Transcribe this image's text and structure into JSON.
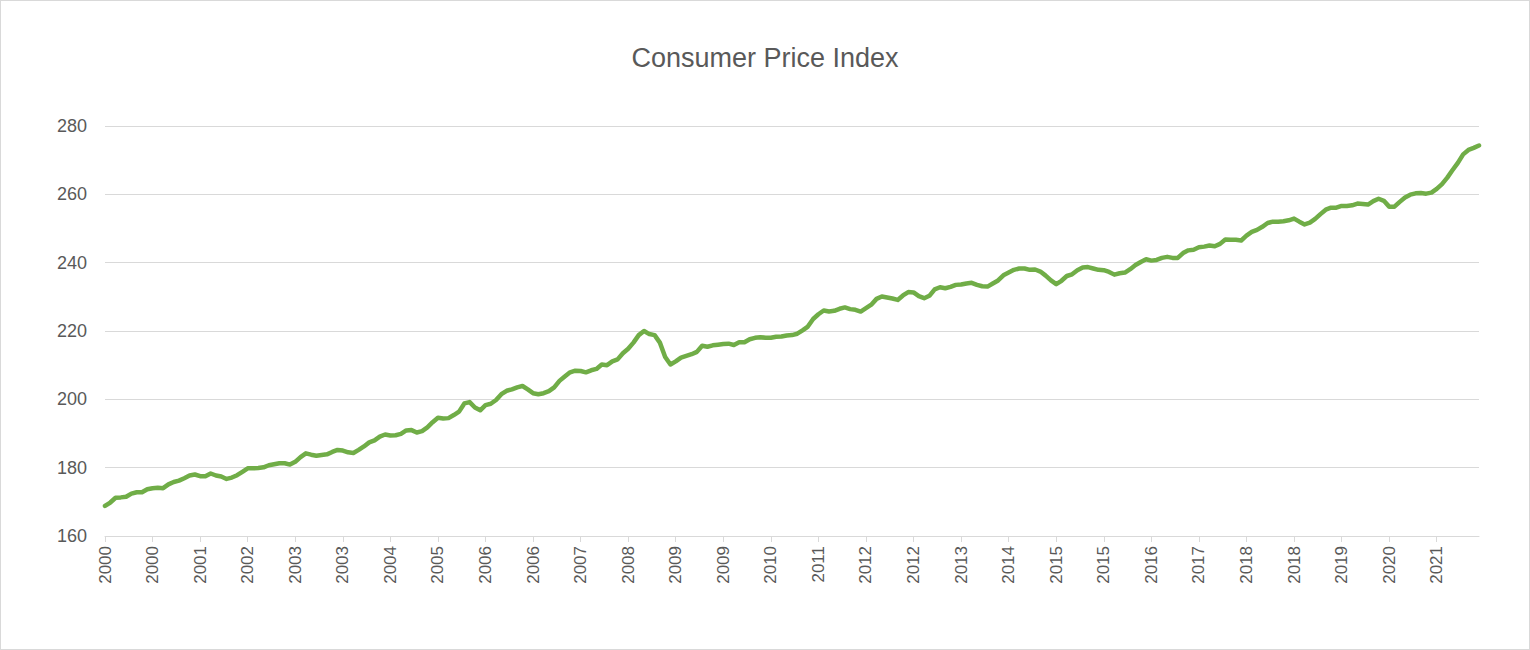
{
  "chart_data": {
    "type": "line",
    "title": "Consumer Price Index",
    "categories": [
      "2000",
      null,
      null,
      null,
      null,
      null,
      null,
      null,
      null,
      "2000",
      null,
      null,
      null,
      null,
      null,
      null,
      null,
      null,
      "2001",
      null,
      null,
      null,
      null,
      null,
      null,
      null,
      null,
      "2002",
      null,
      null,
      null,
      null,
      null,
      null,
      null,
      null,
      "2003",
      null,
      null,
      null,
      null,
      null,
      null,
      null,
      null,
      "2003",
      null,
      null,
      null,
      null,
      null,
      null,
      null,
      null,
      "2004",
      null,
      null,
      null,
      null,
      null,
      null,
      null,
      null,
      "2005",
      null,
      null,
      null,
      null,
      null,
      null,
      null,
      null,
      "2006",
      null,
      null,
      null,
      null,
      null,
      null,
      null,
      null,
      "2006",
      null,
      null,
      null,
      null,
      null,
      null,
      null,
      null,
      "2007",
      null,
      null,
      null,
      null,
      null,
      null,
      null,
      null,
      "2008",
      null,
      null,
      null,
      null,
      null,
      null,
      null,
      null,
      "2009",
      null,
      null,
      null,
      null,
      null,
      null,
      null,
      null,
      "2009",
      null,
      null,
      null,
      null,
      null,
      null,
      null,
      null,
      "2010",
      null,
      null,
      null,
      null,
      null,
      null,
      null,
      null,
      "2011",
      null,
      null,
      null,
      null,
      null,
      null,
      null,
      null,
      "2012",
      null,
      null,
      null,
      null,
      null,
      null,
      null,
      null,
      "2012",
      null,
      null,
      null,
      null,
      null,
      null,
      null,
      null,
      "2013",
      null,
      null,
      null,
      null,
      null,
      null,
      null,
      null,
      "2014",
      null,
      null,
      null,
      null,
      null,
      null,
      null,
      null,
      "2015",
      null,
      null,
      null,
      null,
      null,
      null,
      null,
      null,
      "2015",
      null,
      null,
      null,
      null,
      null,
      null,
      null,
      null,
      "2016",
      null,
      null,
      null,
      null,
      null,
      null,
      null,
      null,
      "2017",
      null,
      null,
      null,
      null,
      null,
      null,
      null,
      null,
      "2018",
      null,
      null,
      null,
      null,
      null,
      null,
      null,
      null,
      "2018",
      null,
      null,
      null,
      null,
      null,
      null,
      null,
      null,
      "2019",
      null,
      null,
      null,
      null,
      null,
      null,
      null,
      null,
      "2020",
      null,
      null,
      null,
      null,
      null,
      null,
      null,
      null,
      "2021",
      null,
      null,
      null,
      null,
      null,
      null,
      null,
      null
    ],
    "values": [
      168.8,
      169.8,
      171.2,
      171.3,
      171.5,
      172.4,
      172.8,
      172.8,
      173.7,
      174.0,
      174.1,
      174.0,
      175.1,
      175.8,
      176.2,
      176.9,
      177.7,
      178.0,
      177.5,
      177.5,
      178.3,
      177.7,
      177.4,
      176.7,
      177.1,
      177.8,
      178.8,
      179.8,
      179.8,
      179.9,
      180.1,
      180.7,
      181.0,
      181.3,
      181.3,
      180.9,
      181.7,
      183.1,
      184.2,
      183.8,
      183.5,
      183.7,
      183.9,
      184.6,
      185.2,
      185.0,
      184.5,
      184.3,
      185.2,
      186.2,
      187.4,
      188.0,
      189.1,
      189.7,
      189.4,
      189.5,
      189.9,
      190.9,
      191.0,
      190.3,
      190.7,
      191.8,
      193.3,
      194.6,
      194.4,
      194.5,
      195.4,
      196.4,
      198.8,
      199.2,
      197.6,
      196.8,
      198.3,
      198.7,
      199.8,
      201.5,
      202.5,
      202.9,
      203.5,
      203.9,
      202.9,
      201.8,
      201.5,
      201.8,
      202.4,
      203.5,
      205.4,
      206.7,
      207.9,
      208.4,
      208.3,
      207.9,
      208.5,
      208.9,
      210.2,
      210.0,
      211.1,
      211.7,
      213.5,
      214.8,
      216.6,
      218.8,
      220.0,
      219.1,
      218.8,
      216.6,
      212.4,
      210.2,
      211.1,
      212.2,
      212.7,
      213.2,
      213.9,
      215.7,
      215.4,
      215.8,
      216.0,
      216.2,
      216.3,
      215.9,
      216.7,
      216.7,
      217.6,
      218.0,
      218.2,
      218.0,
      218.0,
      218.3,
      218.4,
      218.7,
      218.8,
      219.2,
      220.2,
      221.3,
      223.5,
      224.9,
      226.0,
      225.7,
      225.9,
      226.5,
      226.9,
      226.4,
      226.2,
      225.7,
      226.7,
      227.7,
      229.4,
      230.1,
      229.8,
      229.5,
      229.1,
      230.4,
      231.4,
      231.3,
      230.2,
      229.6,
      230.3,
      232.2,
      232.8,
      232.5,
      232.9,
      233.5,
      233.6,
      233.9,
      234.1,
      233.5,
      233.1,
      233.0,
      233.9,
      234.8,
      236.3,
      237.1,
      237.9,
      238.3,
      238.3,
      237.9,
      238.0,
      237.4,
      236.2,
      234.8,
      233.7,
      234.7,
      236.1,
      236.6,
      237.8,
      238.6,
      238.7,
      238.3,
      237.9,
      237.8,
      237.3,
      236.5,
      236.9,
      237.1,
      238.1,
      239.3,
      240.2,
      241.0,
      240.6,
      240.8,
      241.4,
      241.7,
      241.4,
      241.4,
      242.8,
      243.6,
      243.8,
      244.5,
      244.7,
      245.0,
      244.8,
      245.5,
      246.8,
      246.7,
      246.7,
      246.5,
      247.9,
      249.0,
      249.6,
      250.5,
      251.6,
      252.0,
      252.0,
      252.1,
      252.4,
      252.9,
      252.0,
      251.2,
      251.7,
      252.8,
      254.2,
      255.5,
      256.1,
      256.1,
      256.6,
      256.6,
      256.8,
      257.3,
      257.2,
      257.0,
      258.0,
      258.7,
      258.1,
      256.4,
      256.4,
      257.8,
      259.1,
      259.9,
      260.3,
      260.4,
      260.2,
      260.5,
      261.6,
      263.0,
      264.9,
      267.1,
      269.2,
      271.7,
      273.0,
      273.6,
      274.3
    ],
    "color": "#70ad47",
    "ylim": [
      160,
      280
    ],
    "yticks": [
      160,
      180,
      200,
      220,
      240,
      260,
      280
    ],
    "grid": true
  }
}
